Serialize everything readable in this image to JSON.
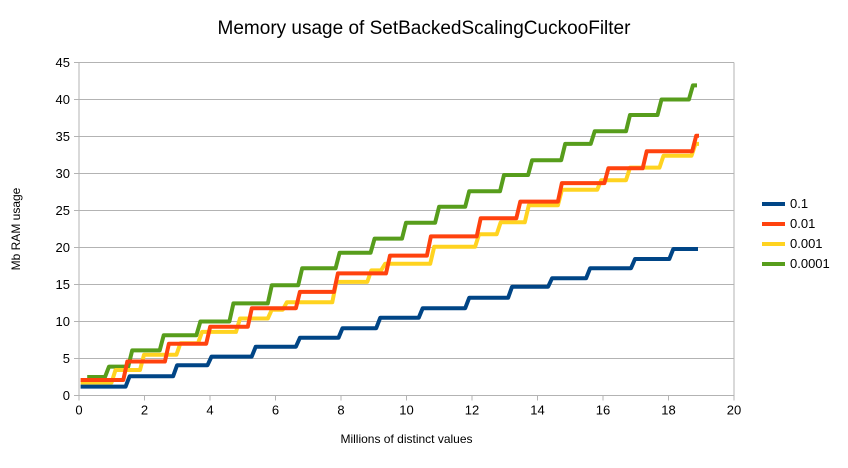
{
  "chart_data": {
    "type": "line",
    "line_style": "stepped",
    "title": "Memory usage of SetBackedScalingCuckooFilter",
    "xlabel": "Millions of distinct values",
    "ylabel": "Mb RAM usage",
    "xlim": [
      0,
      20
    ],
    "ylim": [
      0,
      45
    ],
    "x_ticks": [
      0,
      2,
      4,
      6,
      8,
      10,
      12,
      14,
      16,
      18,
      20
    ],
    "y_ticks": [
      0,
      5,
      10,
      15,
      20,
      25,
      30,
      35,
      40,
      45
    ],
    "grid": "horizontal-only",
    "gridline_color": "#b3b3b3",
    "legend_position": "right",
    "series": [
      {
        "name": "0.1",
        "color": "#004586",
        "end_x": 18.9,
        "steps": [
          [
            0.05,
            1.2
          ],
          [
            1.5,
            2.6
          ],
          [
            2.95,
            4.1
          ],
          [
            4.0,
            5.25
          ],
          [
            5.35,
            6.6
          ],
          [
            6.7,
            7.8
          ],
          [
            8.0,
            9.1
          ],
          [
            9.15,
            10.5
          ],
          [
            10.45,
            11.8
          ],
          [
            11.87,
            13.2
          ],
          [
            13.18,
            14.7
          ],
          [
            14.4,
            15.85
          ],
          [
            15.56,
            17.2
          ],
          [
            16.93,
            18.45
          ],
          [
            18.1,
            19.8
          ]
        ]
      },
      {
        "name": "0.01",
        "color": "#ff420e",
        "end_x": 18.93,
        "steps": [
          [
            0.05,
            2.1
          ],
          [
            1.43,
            4.6
          ],
          [
            2.7,
            7.0
          ],
          [
            3.96,
            9.3
          ],
          [
            5.23,
            11.8
          ],
          [
            6.7,
            14.0
          ],
          [
            7.86,
            16.5
          ],
          [
            9.45,
            18.9
          ],
          [
            10.7,
            21.5
          ],
          [
            12.22,
            23.95
          ],
          [
            13.43,
            26.2
          ],
          [
            14.7,
            28.7
          ],
          [
            16.12,
            30.7
          ],
          [
            17.29,
            33.0
          ],
          [
            18.8,
            35.1
          ]
        ]
      },
      {
        "name": "0.001",
        "color": "#ffd320",
        "end_x": 18.93,
        "steps": [
          [
            0.05,
            1.75
          ],
          [
            1.07,
            3.45
          ],
          [
            1.94,
            5.5
          ],
          [
            3.05,
            7.05
          ],
          [
            3.71,
            8.6
          ],
          [
            4.87,
            10.4
          ],
          [
            5.84,
            11.6
          ],
          [
            6.3,
            12.6
          ],
          [
            7.81,
            15.35
          ],
          [
            8.88,
            16.9
          ],
          [
            9.3,
            17.8
          ],
          [
            10.8,
            20.1
          ],
          [
            12.17,
            21.8
          ],
          [
            12.83,
            23.4
          ],
          [
            13.69,
            25.7
          ],
          [
            14.7,
            27.8
          ],
          [
            15.9,
            29.1
          ],
          [
            16.78,
            30.8
          ],
          [
            17.8,
            32.4
          ],
          [
            18.78,
            34.0
          ]
        ]
      },
      {
        "name": "0.0001",
        "color": "#579d1c",
        "end_x": 18.87,
        "steps": [
          [
            0.25,
            2.5
          ],
          [
            0.87,
            3.9
          ],
          [
            1.58,
            6.1
          ],
          [
            2.54,
            8.15
          ],
          [
            3.66,
            10.0
          ],
          [
            4.67,
            12.45
          ],
          [
            5.84,
            14.9
          ],
          [
            6.77,
            17.2
          ],
          [
            7.91,
            19.3
          ],
          [
            8.98,
            21.2
          ],
          [
            9.94,
            23.35
          ],
          [
            10.95,
            25.5
          ],
          [
            11.87,
            27.6
          ],
          [
            12.93,
            29.8
          ],
          [
            13.79,
            31.8
          ],
          [
            14.8,
            34.0
          ],
          [
            15.7,
            35.7
          ],
          [
            16.78,
            37.9
          ],
          [
            17.74,
            40.0
          ],
          [
            18.7,
            41.9
          ]
        ]
      }
    ],
    "draw_order": [
      "0.0001",
      "0.001",
      "0.1",
      "0.01"
    ]
  }
}
